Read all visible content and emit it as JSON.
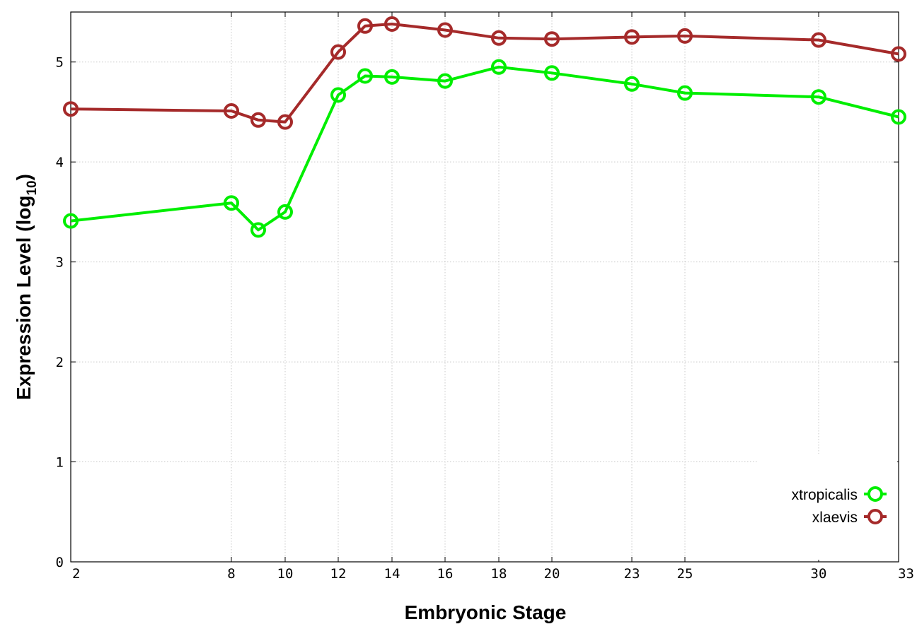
{
  "chart_data": {
    "type": "line",
    "xlabel": "Embryonic Stage",
    "ylabel": "Expression Level (log",
    "ylabel_subscript": "10",
    "ylabel_close": ")",
    "x_ticks": [
      2,
      8,
      10,
      12,
      14,
      16,
      18,
      20,
      23,
      25,
      30,
      33
    ],
    "y_ticks": [
      0,
      1,
      2,
      3,
      4,
      5
    ],
    "ylim": [
      0,
      5.5
    ],
    "grid": true,
    "legend_position": "bottom-right",
    "x_scale": "categorical",
    "x": [
      2,
      8,
      9,
      10,
      12,
      13,
      14,
      16,
      18,
      20,
      23,
      25,
      30,
      33
    ],
    "series": [
      {
        "name": "xtropicalis",
        "color": "#00ee00",
        "values": [
          3.41,
          3.59,
          3.32,
          3.5,
          4.67,
          4.86,
          4.85,
          4.81,
          4.95,
          4.89,
          4.78,
          4.69,
          4.65,
          4.45
        ]
      },
      {
        "name": "xlaevis",
        "color": "#a52a2a",
        "values": [
          4.53,
          4.51,
          4.42,
          4.4,
          5.1,
          5.36,
          5.38,
          5.32,
          5.24,
          5.23,
          5.25,
          5.26,
          5.22,
          5.08
        ]
      }
    ]
  }
}
